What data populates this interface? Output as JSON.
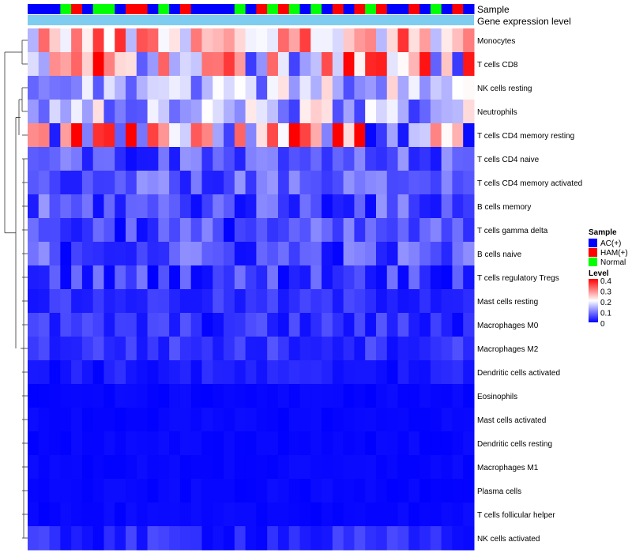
{
  "chart_data": {
    "type": "heatmap",
    "title": "",
    "annotation_tracks": [
      "Sample",
      "Gene expression level"
    ],
    "rows": [
      "Monocytes",
      "T cells CD8",
      "NK cells resting",
      "Neutrophils",
      "T cells CD4 memory resting",
      "T cells CD4 naive",
      "T cells CD4 memory activated",
      "B cells memory",
      "T cells gamma delta",
      "B cells naive",
      "T cells regulatory  Tregs",
      "Mast cells resting",
      "Macrophages M0",
      "Macrophages M2",
      "Dendritic cells activated",
      "Eosinophils",
      "Mast cells activated",
      "Dendritic cells resting",
      "Macrophages M1",
      "Plasma cells",
      "T cells follicular helper",
      "NK cells activated"
    ],
    "sample_groups": [
      "AC",
      "AC",
      "AC",
      "N",
      "H",
      "AC",
      "N",
      "N",
      "AC",
      "H",
      "H",
      "AC",
      "N",
      "AC",
      "H",
      "AC",
      "AC",
      "AC",
      "AC",
      "N",
      "AC",
      "H",
      "N",
      "H",
      "N",
      "AC",
      "N",
      "AC",
      "H",
      "AC",
      "H",
      "N",
      "H",
      "AC",
      "AC",
      "H",
      "AC",
      "N",
      "AC",
      "H",
      "AC"
    ],
    "row_ranges": [
      [
        0.14,
        0.37
      ],
      [
        0.04,
        0.42
      ],
      [
        0.06,
        0.24
      ],
      [
        0.04,
        0.24
      ],
      [
        0.0,
        0.42
      ],
      [
        0.0,
        0.12
      ],
      [
        0.02,
        0.12
      ],
      [
        0.0,
        0.12
      ],
      [
        0.0,
        0.11
      ],
      [
        0.0,
        0.12
      ],
      [
        0.0,
        0.1
      ],
      [
        0.01,
        0.06
      ],
      [
        0.0,
        0.07
      ],
      [
        0.01,
        0.07
      ],
      [
        0.0,
        0.04
      ],
      [
        0.0,
        0.01
      ],
      [
        0.0,
        0.01
      ],
      [
        0.0,
        0.01
      ],
      [
        0.0,
        0.01
      ],
      [
        0.0,
        0.01
      ],
      [
        0.0,
        0.01
      ],
      [
        0.0,
        0.06
      ]
    ],
    "value_range": [
      0,
      0.4
    ],
    "legend": {
      "sample": {
        "title": "Sample",
        "items": [
          {
            "key": "AC",
            "label": "AC(+)",
            "color": "#0000FF"
          },
          {
            "key": "H",
            "label": "HAM(+)",
            "color": "#FF0000"
          },
          {
            "key": "N",
            "label": "Normal",
            "color": "#00FF00"
          }
        ]
      },
      "level": {
        "title": "Level",
        "ticks": [
          "0.4",
          "0.3",
          "0.2",
          "0.1",
          "0"
        ],
        "low_color": "#0000FF",
        "mid_color": "#FFFFFF",
        "high_color": "#FF0000"
      }
    },
    "expression_track_color": "#7ECCF0"
  }
}
